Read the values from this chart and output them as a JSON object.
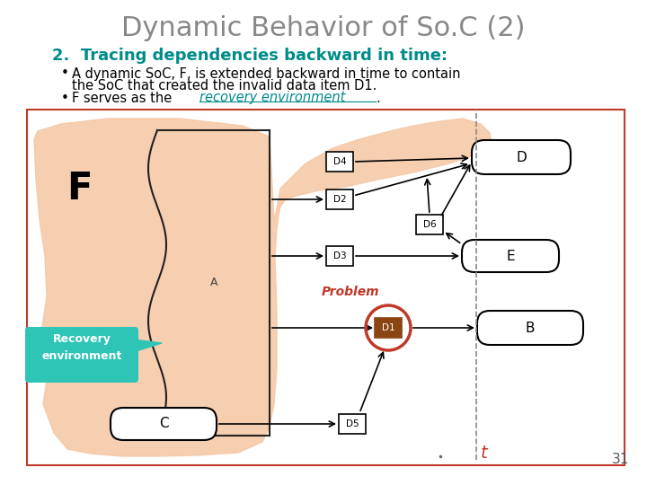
{
  "title": "Dynamic Behavior of So.C (2)",
  "title_color": "#888888",
  "subtitle": "2.  Tracing dependencies backward in time:",
  "subtitle_color": "#008B8B",
  "bullet1a": "A dynamic SoC, F, is extended backward in time to contain",
  "bullet1b": "the SoC that created the invalid data item D1.",
  "bullet2_pre": "F serves as the ",
  "bullet2_link": "recovery environment",
  "bg_color": "#ffffff",
  "diagram_border_color": "#c0392b",
  "slide_number": "31",
  "teal_color": "#008B8B",
  "teal_callout_color": "#2ec4b6",
  "orange_blob_color": "#f5c9a8",
  "orange_blob_alpha": 0.9,
  "dashed_line_color": "#888888",
  "t_color": "#c0392b",
  "problem_color": "#c0392b",
  "d1_fill_color": "#8B4513",
  "d1_circle_color": "#c0392b"
}
